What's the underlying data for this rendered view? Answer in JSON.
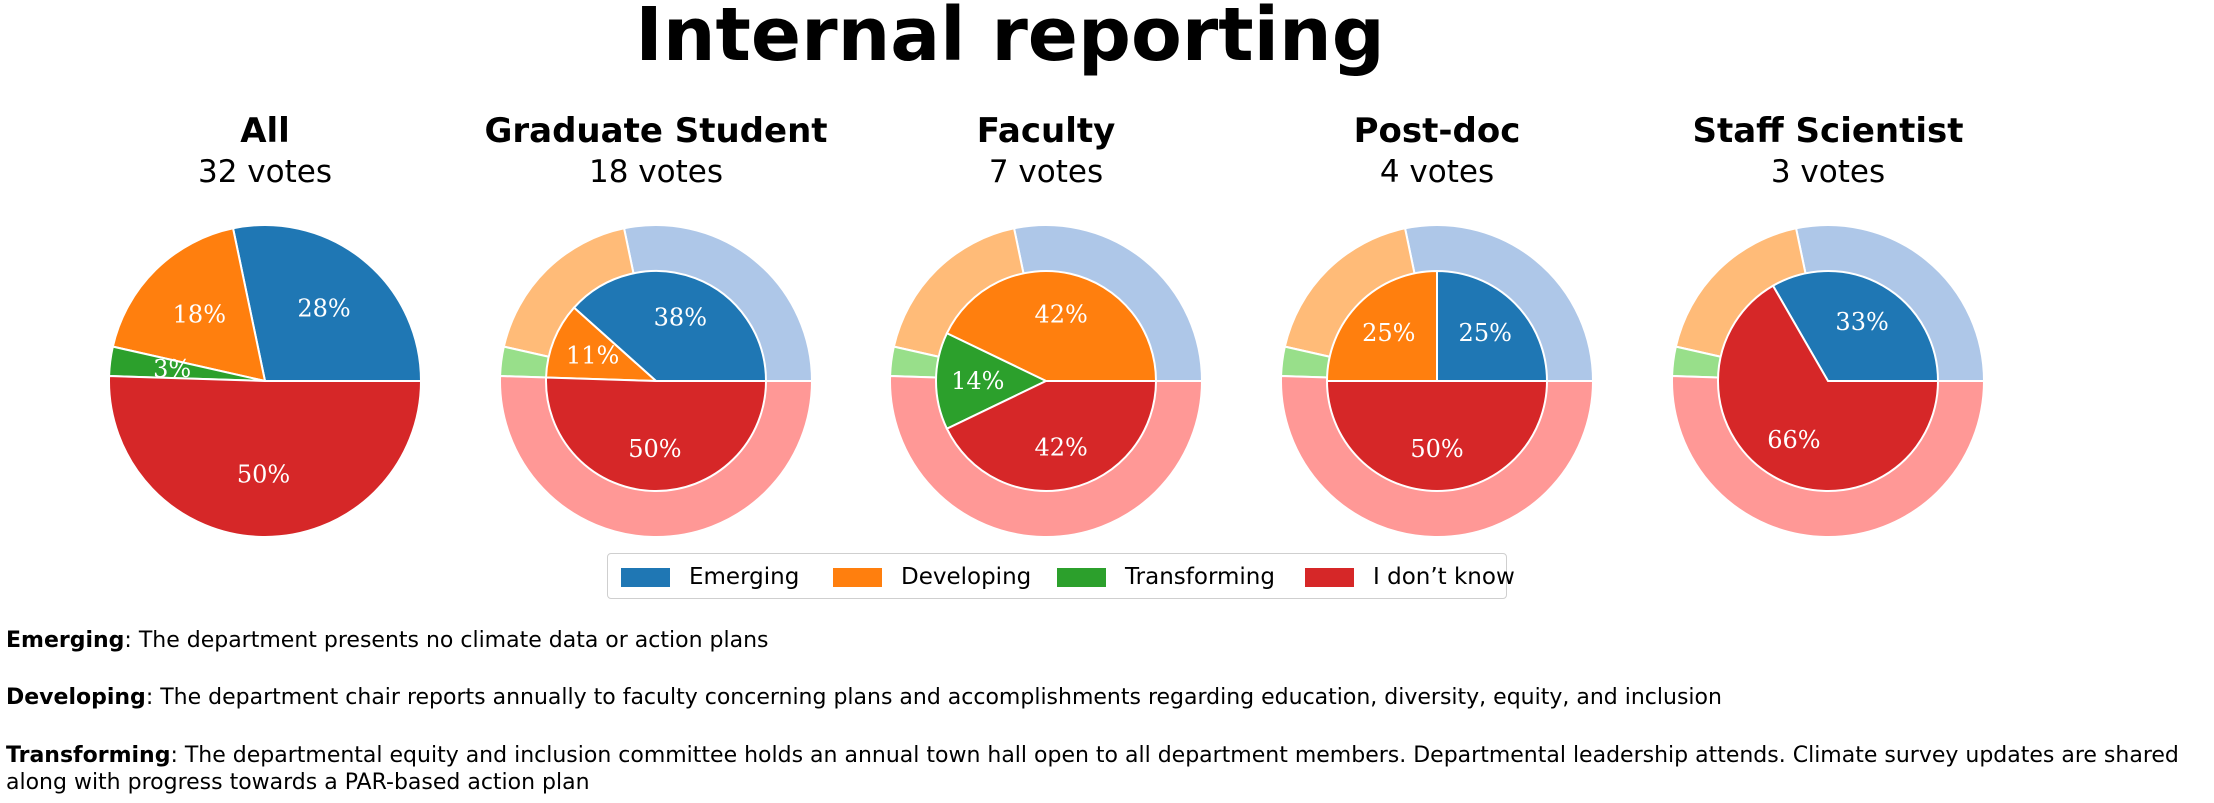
{
  "title": "Internal reporting",
  "colors": {
    "Emerging": "#1f77b4",
    "Developing": "#ff7f0e",
    "Transforming": "#2ca02c",
    "I don't know": "#d62728"
  },
  "outer_colors": {
    "Emerging": "#aec7e8",
    "Developing": "#ffbb78",
    "Transforming": "#98df8a",
    "I don't know": "#ff9896"
  },
  "chart_data": [
    {
      "type": "pie",
      "title": "All",
      "subtitle": "32 votes",
      "categories": [
        "Emerging",
        "Developing",
        "Transforming",
        "I don't know"
      ],
      "values": [
        28,
        18,
        3,
        50
      ],
      "labels": [
        "28%",
        "18%",
        "3%",
        "50%"
      ]
    },
    {
      "type": "pie",
      "title": "Graduate Student",
      "subtitle": "18 votes",
      "categories": [
        "Emerging",
        "Developing",
        "Transforming",
        "I don't know"
      ],
      "values": [
        38,
        11,
        0,
        50
      ],
      "labels": [
        "38%",
        "11%",
        "",
        "50%"
      ],
      "outer_values": [
        28,
        18,
        3,
        50
      ]
    },
    {
      "type": "pie",
      "title": "Faculty",
      "subtitle": "7 votes",
      "categories": [
        "Emerging",
        "Developing",
        "Transforming",
        "I don't know"
      ],
      "values": [
        0,
        42,
        14,
        42
      ],
      "labels": [
        "",
        "42%",
        "14%",
        "42%"
      ],
      "outer_values": [
        28,
        18,
        3,
        50
      ]
    },
    {
      "type": "pie",
      "title": "Post-doc",
      "subtitle": "4 votes",
      "categories": [
        "Emerging",
        "Developing",
        "Transforming",
        "I don't know"
      ],
      "values": [
        25,
        25,
        0,
        50
      ],
      "labels": [
        "25%",
        "25%",
        "",
        "50%"
      ],
      "outer_values": [
        28,
        18,
        3,
        50
      ]
    },
    {
      "type": "pie",
      "title": "Staff Scientist",
      "subtitle": "3 votes",
      "categories": [
        "Emerging",
        "Developing",
        "Transforming",
        "I don't know"
      ],
      "values": [
        33,
        0,
        0,
        66
      ],
      "labels": [
        "33%",
        "",
        "",
        "66%"
      ],
      "outer_values": [
        28,
        18,
        3,
        50
      ]
    }
  ],
  "legend": [
    "Emerging",
    "Developing",
    "Transforming",
    "I don’t know"
  ],
  "definitions": [
    {
      "term": "Emerging",
      "text": ": The department presents no climate data or action plans"
    },
    {
      "term": "Developing",
      "text": ": The department chair reports annually to faculty concerning plans and accomplishments regarding education, diversity, equity, and inclusion"
    },
    {
      "term": "Transforming",
      "text": ": The departmental equity and inclusion committee holds an annual town hall open to all department members. Departmental leadership attends. Climate survey updates are shared along with progress towards a PAR-based action plan"
    }
  ]
}
